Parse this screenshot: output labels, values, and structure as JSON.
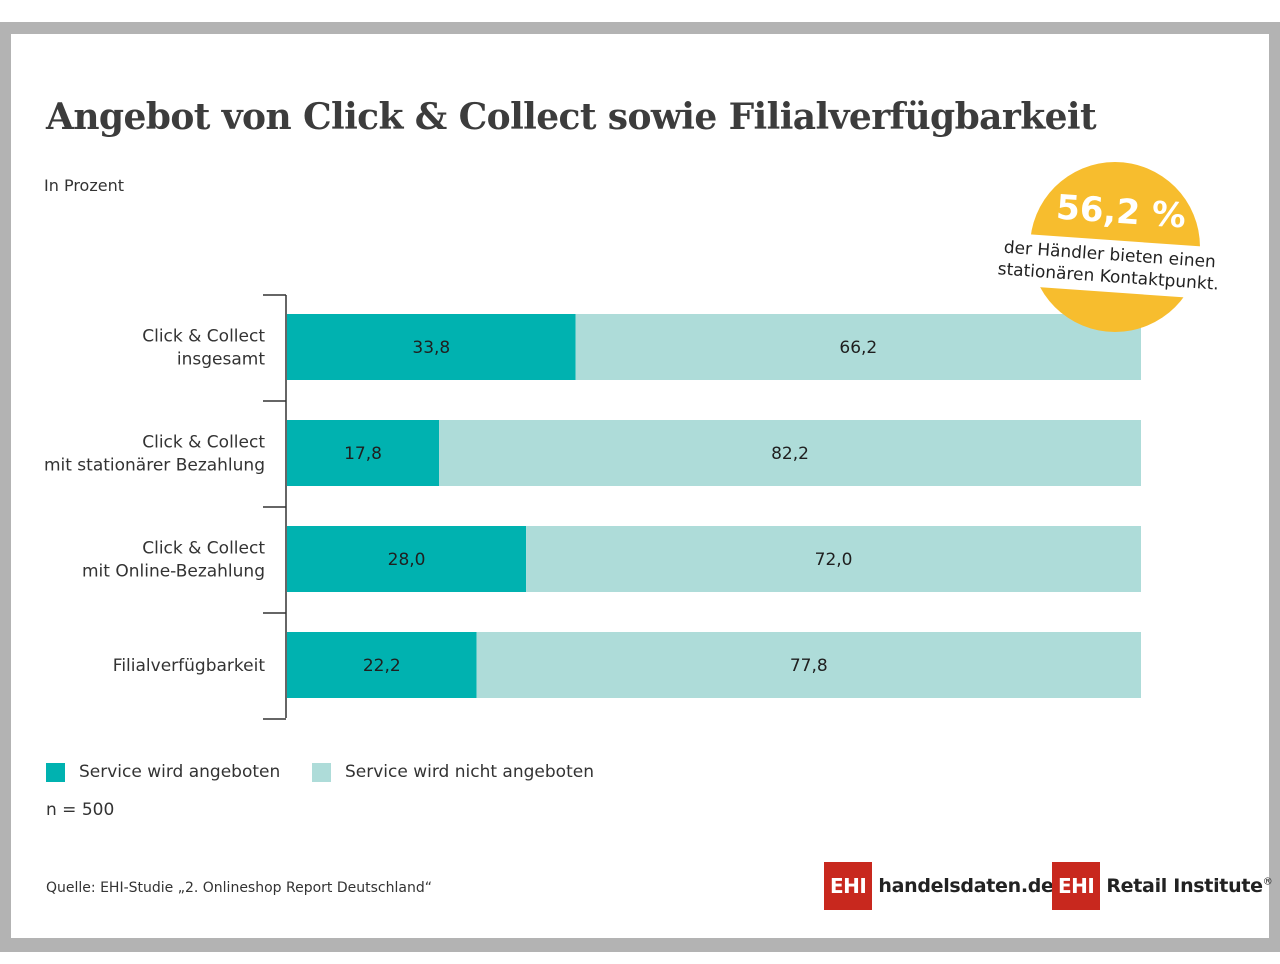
{
  "title": "Angebot von Click & Collect sowie Filialverfügbarkeit",
  "subtitle": "In Prozent",
  "badge": {
    "value": "56,2 %",
    "text": "der Händler bieten einen stationären Kontaktpunkt."
  },
  "legend": {
    "offered": "Service wird angeboten",
    "not_offered": "Service wird nicht angeboten"
  },
  "sample": "n = 500",
  "source": "Quelle: EHI-Studie „2. Onlineshop Report Deutschland“",
  "logos": {
    "left_mark": "EHI",
    "left_name": "handelsdaten.de",
    "right_mark": "EHI",
    "right_name": "Retail Institute",
    "right_reg": "®"
  },
  "colors": {
    "offered": "#00b2b0",
    "not_offered": "#aedcd9",
    "badge": "#f7bd2e",
    "logo_red": "#c8281e"
  },
  "chart_data": {
    "type": "bar",
    "orientation": "horizontal",
    "stacked": true,
    "xlim": [
      0,
      100
    ],
    "categories": [
      [
        "Click & Collect",
        "insgesamt"
      ],
      [
        "Click & Collect",
        "mit stationärer Bezahlung"
      ],
      [
        "Click & Collect",
        "mit Online-Bezahlung"
      ],
      [
        "Filialverfügbarkeit"
      ]
    ],
    "series": [
      {
        "name": "Service wird angeboten",
        "values": [
          33.8,
          17.8,
          28.0,
          22.2
        ],
        "labels": [
          "33,8",
          "17,8",
          "28,0",
          "22,2"
        ]
      },
      {
        "name": "Service wird nicht angeboten",
        "values": [
          66.2,
          82.2,
          72.0,
          77.8
        ],
        "labels": [
          "66,2",
          "82,2",
          "72,0",
          "77,8"
        ]
      }
    ]
  }
}
